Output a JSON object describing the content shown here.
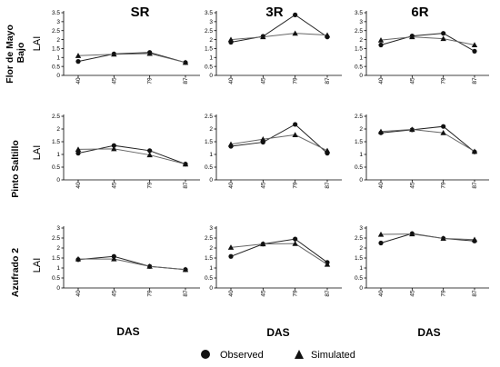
{
  "column_titles": [
    "SR",
    "3R",
    "6R"
  ],
  "row_labels": [
    [
      "Flor de Mayo",
      "Bajo"
    ],
    [
      "Pinto Saltillo"
    ],
    [
      "Azufrado 2"
    ]
  ],
  "ylabel": "LAI",
  "xlabel": "DAS",
  "legend": {
    "observed": "Observed",
    "simulated": "Simulated"
  },
  "colors": {
    "observed": "#111111",
    "simulated": "#111111",
    "lines": "#333333"
  },
  "chart_data": [
    {
      "type": "line",
      "row": 0,
      "col": 0,
      "title": "SR",
      "xlabel": "",
      "ylabel": "LAI",
      "categories": [
        "40",
        "45",
        "79",
        "87"
      ],
      "ylim": [
        0,
        3.5
      ],
      "yticks": [
        "0",
        "0.5",
        "1",
        "1.5",
        "2",
        "2.5",
        "3",
        "3.5"
      ],
      "series": [
        {
          "name": "Observed",
          "values": [
            0.78,
            1.2,
            1.28,
            0.72
          ]
        },
        {
          "name": "Simulated",
          "values": [
            1.1,
            1.18,
            1.22,
            0.72
          ]
        }
      ]
    },
    {
      "type": "line",
      "row": 0,
      "col": 1,
      "title": "3R",
      "xlabel": "",
      "ylabel": "",
      "categories": [
        "40",
        "45",
        "79",
        "87"
      ],
      "ylim": [
        0,
        3.5
      ],
      "yticks": [
        "0",
        "0.5",
        "1",
        "1.5",
        "2",
        "2.5",
        "3",
        "3.5"
      ],
      "series": [
        {
          "name": "Observed",
          "values": [
            1.85,
            2.18,
            3.38,
            2.15
          ]
        },
        {
          "name": "Simulated",
          "values": [
            2.0,
            2.15,
            2.35,
            2.25
          ]
        }
      ]
    },
    {
      "type": "line",
      "row": 0,
      "col": 2,
      "title": "6R",
      "xlabel": "",
      "ylabel": "",
      "categories": [
        "40",
        "45",
        "79",
        "87"
      ],
      "ylim": [
        0,
        3.5
      ],
      "yticks": [
        "0",
        "0.5",
        "1",
        "1.5",
        "2",
        "2.5",
        "3",
        "3.5"
      ],
      "series": [
        {
          "name": "Observed",
          "values": [
            1.7,
            2.2,
            2.35,
            1.35
          ]
        },
        {
          "name": "Simulated",
          "values": [
            1.97,
            2.15,
            2.05,
            1.7
          ]
        }
      ]
    },
    {
      "type": "line",
      "row": 1,
      "col": 0,
      "title": "",
      "xlabel": "",
      "ylabel": "LAI",
      "categories": [
        "40",
        "45",
        "79",
        "87"
      ],
      "ylim": [
        0,
        2.5
      ],
      "yticks": [
        "0",
        "0.5",
        "1",
        "1.5",
        "2",
        "2.5"
      ],
      "series": [
        {
          "name": "Observed",
          "values": [
            1.05,
            1.35,
            1.15,
            0.62
          ]
        },
        {
          "name": "Simulated",
          "values": [
            1.2,
            1.22,
            0.98,
            0.62
          ]
        }
      ]
    },
    {
      "type": "line",
      "row": 1,
      "col": 1,
      "title": "",
      "xlabel": "",
      "ylabel": "",
      "categories": [
        "40",
        "45",
        "79",
        "87"
      ],
      "ylim": [
        0,
        2.5
      ],
      "yticks": [
        "0",
        "0.5",
        "1",
        "1.5",
        "2",
        "2.5"
      ],
      "series": [
        {
          "name": "Observed",
          "values": [
            1.32,
            1.48,
            2.18,
            1.05
          ]
        },
        {
          "name": "Simulated",
          "values": [
            1.4,
            1.6,
            1.77,
            1.15
          ]
        }
      ]
    },
    {
      "type": "line",
      "row": 1,
      "col": 2,
      "title": "",
      "xlabel": "",
      "ylabel": "",
      "categories": [
        "40",
        "45",
        "79",
        "87"
      ],
      "ylim": [
        0,
        2.5
      ],
      "yticks": [
        "0",
        "0.5",
        "1",
        "1.5",
        "2",
        "2.5"
      ],
      "series": [
        {
          "name": "Observed",
          "values": [
            1.85,
            1.97,
            2.1,
            1.1
          ]
        },
        {
          "name": "Simulated",
          "values": [
            1.9,
            1.98,
            1.85,
            1.12
          ]
        }
      ]
    },
    {
      "type": "line",
      "row": 2,
      "col": 0,
      "title": "",
      "xlabel": "DAS",
      "ylabel": "LAI",
      "categories": [
        "40",
        "45",
        "79",
        "87"
      ],
      "ylim": [
        0,
        3
      ],
      "yticks": [
        "0",
        "0.5",
        "1",
        "1.5",
        "2",
        "2.5",
        "3"
      ],
      "series": [
        {
          "name": "Observed",
          "values": [
            1.42,
            1.58,
            1.08,
            0.92
          ]
        },
        {
          "name": "Simulated",
          "values": [
            1.45,
            1.45,
            1.08,
            0.92
          ]
        }
      ]
    },
    {
      "type": "line",
      "row": 2,
      "col": 1,
      "title": "",
      "xlabel": "DAS",
      "ylabel": "",
      "categories": [
        "40",
        "45",
        "79",
        "87"
      ],
      "ylim": [
        0,
        3
      ],
      "yticks": [
        "0",
        "0.5",
        "1",
        "1.5",
        "2",
        "2.5",
        "3"
      ],
      "series": [
        {
          "name": "Observed",
          "values": [
            1.58,
            2.2,
            2.45,
            1.28
          ]
        },
        {
          "name": "Simulated",
          "values": [
            2.03,
            2.2,
            2.22,
            1.18
          ]
        }
      ]
    },
    {
      "type": "line",
      "row": 2,
      "col": 2,
      "title": "",
      "xlabel": "DAS",
      "ylabel": "",
      "categories": [
        "40",
        "45",
        "79",
        "87"
      ],
      "ylim": [
        0,
        3
      ],
      "yticks": [
        "0",
        "0.5",
        "1",
        "1.5",
        "2",
        "2.5",
        "3"
      ],
      "series": [
        {
          "name": "Observed",
          "values": [
            2.25,
            2.72,
            2.48,
            2.35
          ]
        },
        {
          "name": "Simulated",
          "values": [
            2.68,
            2.7,
            2.48,
            2.42
          ]
        }
      ]
    }
  ]
}
